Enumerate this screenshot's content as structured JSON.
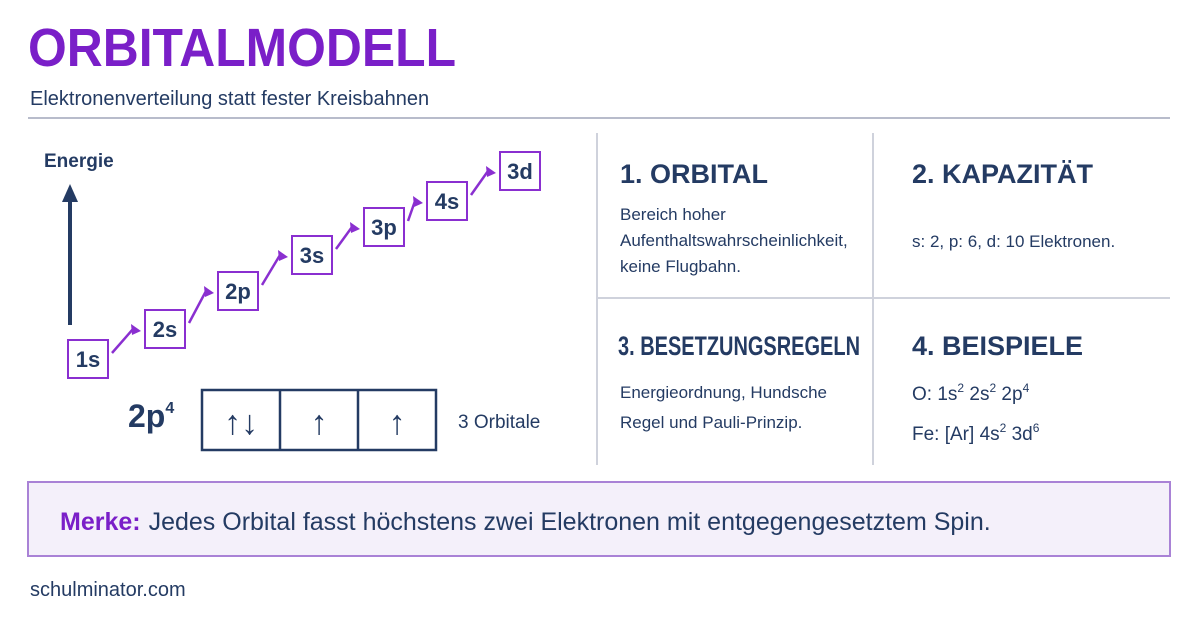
{
  "header": {
    "title": "ORBITALMODELL",
    "subtitle": "Elektronenverteilung statt fester Kreisbahnen"
  },
  "diagram": {
    "axis_label": "Energie",
    "levels": [
      "1s",
      "2s",
      "2p",
      "3s",
      "3p",
      "4s",
      "3d"
    ],
    "config": {
      "base": "2p",
      "sup": "4"
    },
    "boxes": [
      "↑↓",
      "↑",
      "↑"
    ],
    "boxes_label": "3 Orbitale"
  },
  "cards": [
    {
      "title": "1. ORBITAL",
      "lines": [
        "Bereich hoher",
        "Aufenthaltswahrscheinlichkeit,",
        "keine Flugbahn."
      ]
    },
    {
      "title": "2. KAPAZITÄT",
      "lines": [
        "s: 2, p: 6, d: 10 Elektronen."
      ]
    },
    {
      "title": "3. BESETZUNGSREGELN",
      "lines": [
        "Energieordnung, Hundsche",
        "Regel und Pauli-Prinzip."
      ]
    },
    {
      "title": "4. BEISPIELE",
      "examples": [
        [
          {
            "base": "O: 1s",
            "sup": "2"
          },
          {
            "base": " 2s",
            "sup": "2"
          },
          {
            "base": " 2p",
            "sup": "4"
          }
        ],
        [
          {
            "base": "Fe: [Ar] 4s",
            "sup": "2"
          },
          {
            "base": " 3d",
            "sup": "6"
          }
        ]
      ]
    }
  ],
  "note": {
    "label": "Merke:",
    "text": "Jedes Orbital fasst höchstens zwei Elektronen mit entgegengesetztem Spin."
  },
  "footer": "schulminator.com"
}
